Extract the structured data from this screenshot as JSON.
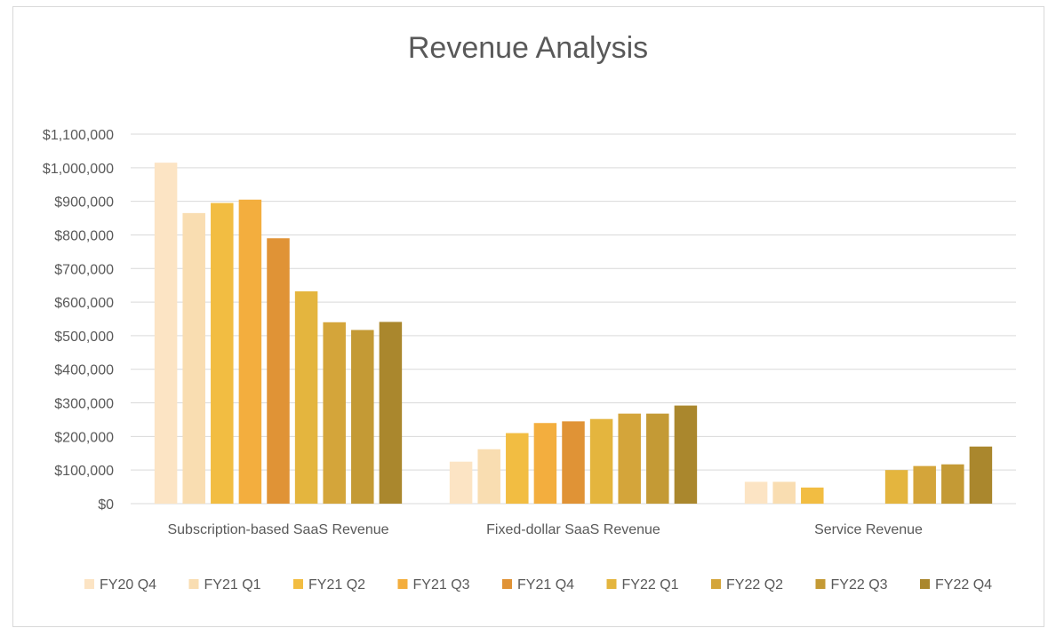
{
  "chart_data": {
    "type": "bar",
    "title": "Revenue Analysis",
    "xlabel": "",
    "ylabel": "",
    "categories": [
      "Subscription-based SaaS Revenue",
      "Fixed-dollar SaaS Revenue",
      "Service Revenue"
    ],
    "ylim": [
      0,
      1100000
    ],
    "yticks": [
      0,
      100000,
      200000,
      300000,
      400000,
      500000,
      600000,
      700000,
      800000,
      900000,
      1000000,
      1100000
    ],
    "ytick_labels": [
      "$0",
      "$100,000",
      "$200,000",
      "$300,000",
      "$400,000",
      "$500,000",
      "$600,000",
      "$700,000",
      "$800,000",
      "$900,000",
      "$1,000,000",
      "$1,100,000"
    ],
    "grid": true,
    "legend_position": "bottom",
    "series": [
      {
        "name": "FY20 Q4",
        "color": "#FCE4C4",
        "values": [
          1015000,
          125000,
          65000
        ]
      },
      {
        "name": "FY21 Q1",
        "color": "#F9DDB1",
        "values": [
          865000,
          162000,
          65000
        ]
      },
      {
        "name": "FY21 Q2",
        "color": "#F2BD42",
        "values": [
          895000,
          210000,
          48000
        ]
      },
      {
        "name": "FY21 Q3",
        "color": "#F3AE3E",
        "values": [
          905000,
          240000,
          0
        ]
      },
      {
        "name": "FY21 Q4",
        "color": "#E09336",
        "values": [
          790000,
          245000,
          0
        ]
      },
      {
        "name": "FY22 Q1",
        "color": "#E4B53E",
        "values": [
          632000,
          252000,
          100000
        ]
      },
      {
        "name": "FY22 Q2",
        "color": "#D4A53A",
        "values": [
          540000,
          268000,
          112000
        ]
      },
      {
        "name": "FY22 Q3",
        "color": "#C49A35",
        "values": [
          517000,
          268000,
          117000
        ]
      },
      {
        "name": "FY22 Q4",
        "color": "#AA872D",
        "values": [
          541000,
          292000,
          170000
        ]
      }
    ]
  }
}
